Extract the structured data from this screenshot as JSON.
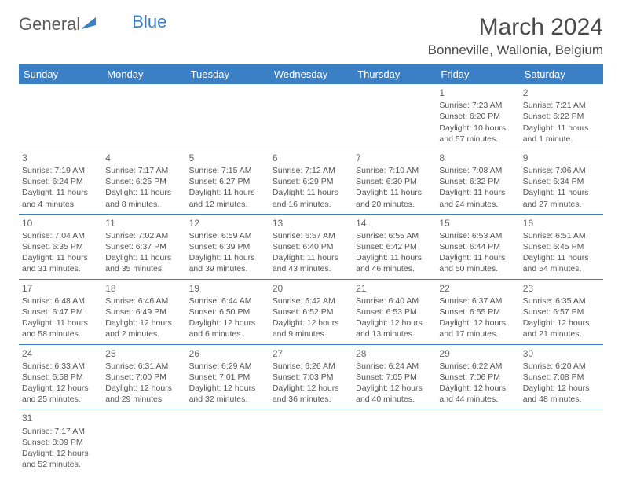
{
  "logo": {
    "text1": "General",
    "text2": "Blue"
  },
  "title": "March 2024",
  "location": "Bonneville, Wallonia, Belgium",
  "colors": {
    "header_bg": "#3b7fc4",
    "header_fg": "#ffffff",
    "row_border": "#3b7fc4",
    "text": "#555555",
    "title": "#4a4a4a"
  },
  "day_headers": [
    "Sunday",
    "Monday",
    "Tuesday",
    "Wednesday",
    "Thursday",
    "Friday",
    "Saturday"
  ],
  "weeks": [
    [
      null,
      null,
      null,
      null,
      null,
      {
        "n": "1",
        "sunrise": "Sunrise: 7:23 AM",
        "sunset": "Sunset: 6:20 PM",
        "daylight": "Daylight: 10 hours and 57 minutes."
      },
      {
        "n": "2",
        "sunrise": "Sunrise: 7:21 AM",
        "sunset": "Sunset: 6:22 PM",
        "daylight": "Daylight: 11 hours and 1 minute."
      }
    ],
    [
      {
        "n": "3",
        "sunrise": "Sunrise: 7:19 AM",
        "sunset": "Sunset: 6:24 PM",
        "daylight": "Daylight: 11 hours and 4 minutes."
      },
      {
        "n": "4",
        "sunrise": "Sunrise: 7:17 AM",
        "sunset": "Sunset: 6:25 PM",
        "daylight": "Daylight: 11 hours and 8 minutes."
      },
      {
        "n": "5",
        "sunrise": "Sunrise: 7:15 AM",
        "sunset": "Sunset: 6:27 PM",
        "daylight": "Daylight: 11 hours and 12 minutes."
      },
      {
        "n": "6",
        "sunrise": "Sunrise: 7:12 AM",
        "sunset": "Sunset: 6:29 PM",
        "daylight": "Daylight: 11 hours and 16 minutes."
      },
      {
        "n": "7",
        "sunrise": "Sunrise: 7:10 AM",
        "sunset": "Sunset: 6:30 PM",
        "daylight": "Daylight: 11 hours and 20 minutes."
      },
      {
        "n": "8",
        "sunrise": "Sunrise: 7:08 AM",
        "sunset": "Sunset: 6:32 PM",
        "daylight": "Daylight: 11 hours and 24 minutes."
      },
      {
        "n": "9",
        "sunrise": "Sunrise: 7:06 AM",
        "sunset": "Sunset: 6:34 PM",
        "daylight": "Daylight: 11 hours and 27 minutes."
      }
    ],
    [
      {
        "n": "10",
        "sunrise": "Sunrise: 7:04 AM",
        "sunset": "Sunset: 6:35 PM",
        "daylight": "Daylight: 11 hours and 31 minutes."
      },
      {
        "n": "11",
        "sunrise": "Sunrise: 7:02 AM",
        "sunset": "Sunset: 6:37 PM",
        "daylight": "Daylight: 11 hours and 35 minutes."
      },
      {
        "n": "12",
        "sunrise": "Sunrise: 6:59 AM",
        "sunset": "Sunset: 6:39 PM",
        "daylight": "Daylight: 11 hours and 39 minutes."
      },
      {
        "n": "13",
        "sunrise": "Sunrise: 6:57 AM",
        "sunset": "Sunset: 6:40 PM",
        "daylight": "Daylight: 11 hours and 43 minutes."
      },
      {
        "n": "14",
        "sunrise": "Sunrise: 6:55 AM",
        "sunset": "Sunset: 6:42 PM",
        "daylight": "Daylight: 11 hours and 46 minutes."
      },
      {
        "n": "15",
        "sunrise": "Sunrise: 6:53 AM",
        "sunset": "Sunset: 6:44 PM",
        "daylight": "Daylight: 11 hours and 50 minutes."
      },
      {
        "n": "16",
        "sunrise": "Sunrise: 6:51 AM",
        "sunset": "Sunset: 6:45 PM",
        "daylight": "Daylight: 11 hours and 54 minutes."
      }
    ],
    [
      {
        "n": "17",
        "sunrise": "Sunrise: 6:48 AM",
        "sunset": "Sunset: 6:47 PM",
        "daylight": "Daylight: 11 hours and 58 minutes."
      },
      {
        "n": "18",
        "sunrise": "Sunrise: 6:46 AM",
        "sunset": "Sunset: 6:49 PM",
        "daylight": "Daylight: 12 hours and 2 minutes."
      },
      {
        "n": "19",
        "sunrise": "Sunrise: 6:44 AM",
        "sunset": "Sunset: 6:50 PM",
        "daylight": "Daylight: 12 hours and 6 minutes."
      },
      {
        "n": "20",
        "sunrise": "Sunrise: 6:42 AM",
        "sunset": "Sunset: 6:52 PM",
        "daylight": "Daylight: 12 hours and 9 minutes."
      },
      {
        "n": "21",
        "sunrise": "Sunrise: 6:40 AM",
        "sunset": "Sunset: 6:53 PM",
        "daylight": "Daylight: 12 hours and 13 minutes."
      },
      {
        "n": "22",
        "sunrise": "Sunrise: 6:37 AM",
        "sunset": "Sunset: 6:55 PM",
        "daylight": "Daylight: 12 hours and 17 minutes."
      },
      {
        "n": "23",
        "sunrise": "Sunrise: 6:35 AM",
        "sunset": "Sunset: 6:57 PM",
        "daylight": "Daylight: 12 hours and 21 minutes."
      }
    ],
    [
      {
        "n": "24",
        "sunrise": "Sunrise: 6:33 AM",
        "sunset": "Sunset: 6:58 PM",
        "daylight": "Daylight: 12 hours and 25 minutes."
      },
      {
        "n": "25",
        "sunrise": "Sunrise: 6:31 AM",
        "sunset": "Sunset: 7:00 PM",
        "daylight": "Daylight: 12 hours and 29 minutes."
      },
      {
        "n": "26",
        "sunrise": "Sunrise: 6:29 AM",
        "sunset": "Sunset: 7:01 PM",
        "daylight": "Daylight: 12 hours and 32 minutes."
      },
      {
        "n": "27",
        "sunrise": "Sunrise: 6:26 AM",
        "sunset": "Sunset: 7:03 PM",
        "daylight": "Daylight: 12 hours and 36 minutes."
      },
      {
        "n": "28",
        "sunrise": "Sunrise: 6:24 AM",
        "sunset": "Sunset: 7:05 PM",
        "daylight": "Daylight: 12 hours and 40 minutes."
      },
      {
        "n": "29",
        "sunrise": "Sunrise: 6:22 AM",
        "sunset": "Sunset: 7:06 PM",
        "daylight": "Daylight: 12 hours and 44 minutes."
      },
      {
        "n": "30",
        "sunrise": "Sunrise: 6:20 AM",
        "sunset": "Sunset: 7:08 PM",
        "daylight": "Daylight: 12 hours and 48 minutes."
      }
    ],
    [
      {
        "n": "31",
        "sunrise": "Sunrise: 7:17 AM",
        "sunset": "Sunset: 8:09 PM",
        "daylight": "Daylight: 12 hours and 52 minutes."
      },
      null,
      null,
      null,
      null,
      null,
      null
    ]
  ]
}
